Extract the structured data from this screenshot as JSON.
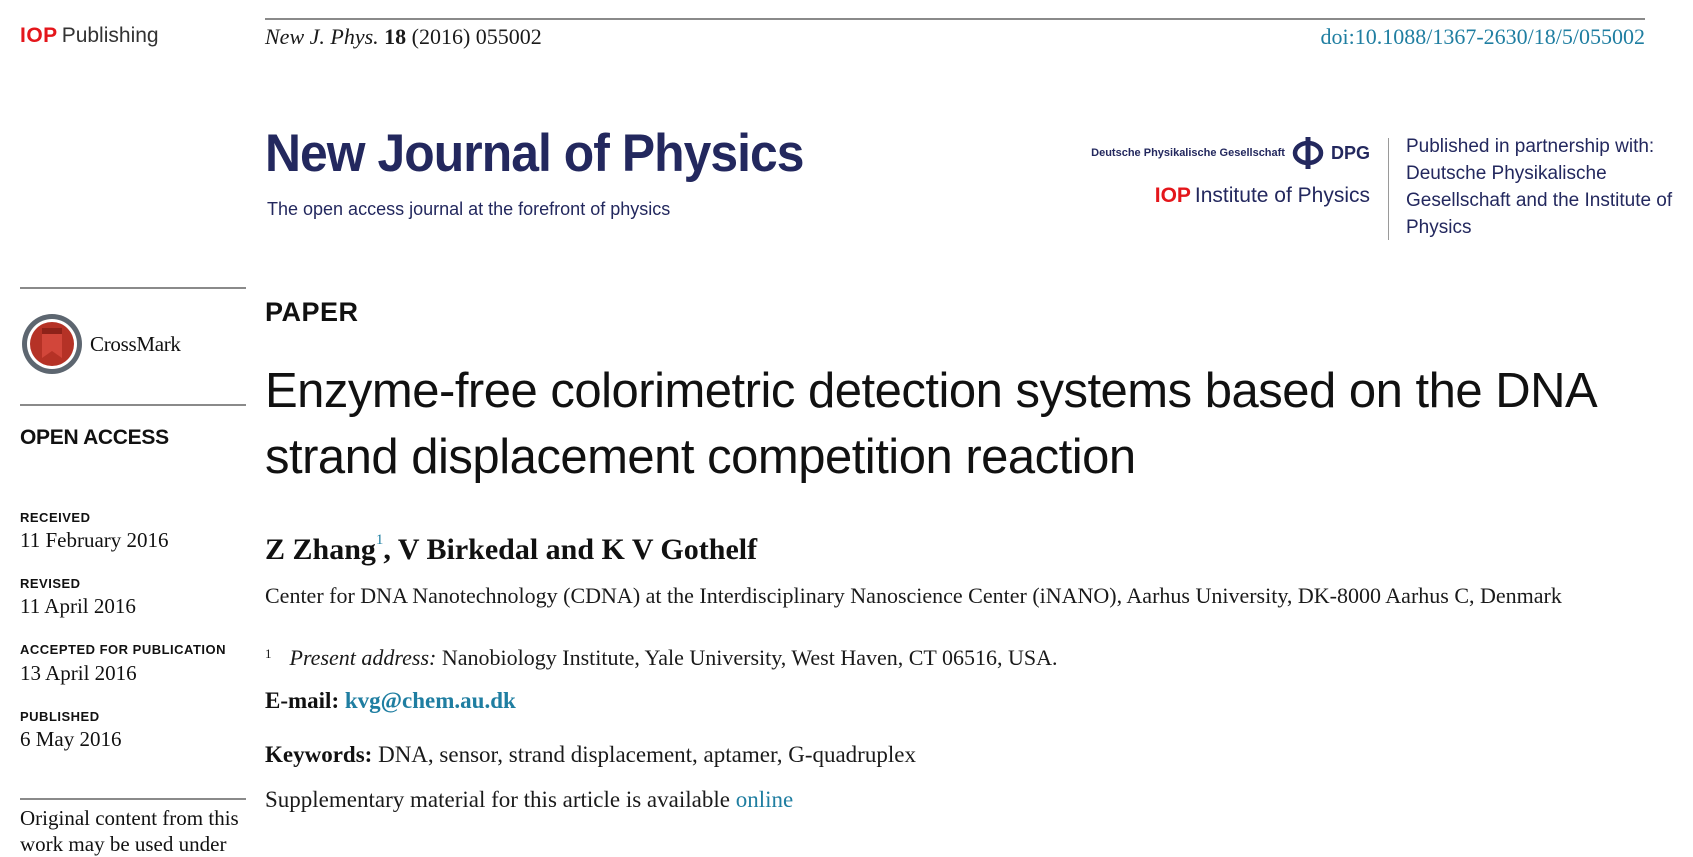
{
  "header": {
    "publisher_logo": {
      "brand": "IOP",
      "word": "Publishing"
    },
    "citation": {
      "journal": "New J. Phys.",
      "volume": "18",
      "rest": "(2016) 055002"
    },
    "doi": "doi:10.1088/1367-2630/18/5/055002"
  },
  "masthead": {
    "journal_name": "New Journal of Physics",
    "tagline": "The open access journal at the forefront of  physics",
    "dpg_full": "Deutsche Physikalische Gesellschaft",
    "dpg_abbr": "DPG",
    "iop_brand": "IOP",
    "iop_institute": "Institute of Physics",
    "partnership_text": "Published in partnership with: Deutsche Physikalische Gesellschaft and the Institute of Physics"
  },
  "sidebar": {
    "crossmark_label": "CrossMark",
    "open_access": "OPEN ACCESS",
    "dates": [
      {
        "label": "RECEIVED",
        "value": "11 February 2016"
      },
      {
        "label": "REVISED",
        "value": "11 April 2016"
      },
      {
        "label": "ACCEPTED FOR PUBLICATION",
        "value": "13 April 2016"
      },
      {
        "label": "PUBLISHED",
        "value": "6 May 2016"
      }
    ],
    "license_text": "Original content from this work may be used under"
  },
  "article": {
    "type": "PAPER",
    "title": "Enzyme-free colorimetric detection systems based on the DNA strand displacement competition reaction",
    "authors": {
      "first": "Z Zhang",
      "first_sup": "1",
      "rest": ", V Birkedal and K V Gothelf"
    },
    "affiliation": "Center for DNA Nanotechnology (CDNA) at the Interdisciplinary Nanoscience Center (iNANO), Aarhus University, DK-8000 Aarhus C, Denmark",
    "footnote": {
      "mark": "1",
      "label": "Present address:",
      "text": " Nanobiology Institute, Yale University, West Haven, CT 06516, USA."
    },
    "email": {
      "label": "E-mail:",
      "value": "kvg@chem.au.dk"
    },
    "keywords": {
      "label": "Keywords:",
      "value": " DNA, sensor, strand displacement, aptamer, G-quadruplex"
    },
    "supplementary": {
      "text": "Supplementary material for this article is available ",
      "link": "online"
    }
  },
  "colors": {
    "brand_red": "#e4161b",
    "journal_navy": "#23285e",
    "link_blue": "#1f7ea1"
  }
}
